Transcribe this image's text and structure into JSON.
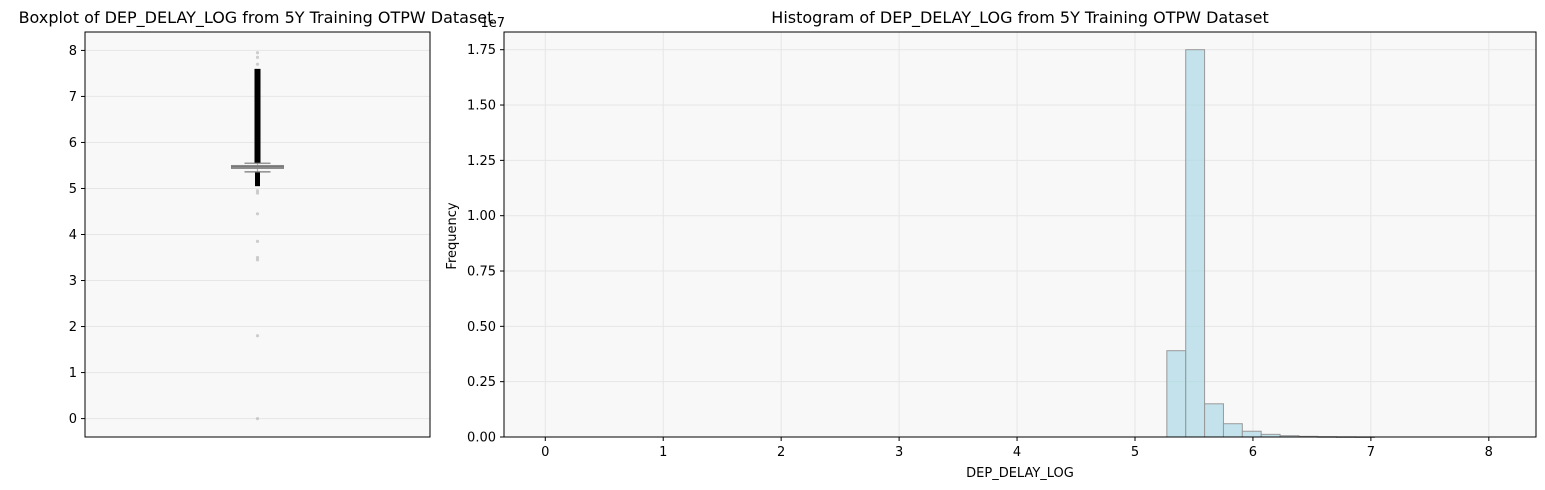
{
  "chart_data": [
    {
      "type": "boxplot",
      "title": "Boxplot of DEP_DELAY_LOG from 5Y Training OTPW Dataset",
      "xlabel": "",
      "ylabel": "",
      "ylim": [
        -0.4,
        8.4
      ],
      "yticks": [
        0,
        1,
        2,
        3,
        4,
        5,
        6,
        7,
        8
      ],
      "grid": true,
      "background": "#f8f8f8",
      "box": {
        "q1": 5.44,
        "median": 5.47,
        "q3": 5.5,
        "whisker_low": 5.36,
        "whisker_high": 5.55,
        "color": "#b0b0b0"
      },
      "outliers": {
        "dense_low": [
          5.05,
          5.36
        ],
        "dense_high": [
          5.55,
          7.6
        ],
        "sparse": [
          7.7,
          7.85,
          7.95,
          4.95,
          4.9,
          4.45,
          3.85,
          3.5,
          3.45,
          1.8,
          0.0
        ]
      }
    },
    {
      "type": "bar",
      "title": "Histogram of DEP_DELAY_LOG from 5Y Training OTPW Dataset",
      "xlabel": "DEP_DELAY_LOG",
      "ylabel": "Frequency",
      "y_scale_label": "1e7",
      "xlim": [
        -0.35,
        8.4
      ],
      "ylim": [
        0,
        1.83
      ],
      "xticks": [
        0,
        1,
        2,
        3,
        4,
        5,
        6,
        7,
        8
      ],
      "yticks": [
        "0.00",
        "0.25",
        "0.50",
        "0.75",
        "1.00",
        "1.25",
        "1.50",
        "1.75"
      ],
      "grid": true,
      "background": "#f8f8f8",
      "bar_color": "#add8e6",
      "bar_edge_color": "#999999",
      "bins": [
        {
          "x0": 5.27,
          "x1": 5.43,
          "value": 0.39
        },
        {
          "x0": 5.43,
          "x1": 5.59,
          "value": 1.75
        },
        {
          "x0": 5.59,
          "x1": 5.75,
          "value": 0.15
        },
        {
          "x0": 5.75,
          "x1": 5.91,
          "value": 0.06
        },
        {
          "x0": 5.91,
          "x1": 6.07,
          "value": 0.026
        },
        {
          "x0": 6.07,
          "x1": 6.23,
          "value": 0.012
        },
        {
          "x0": 6.23,
          "x1": 6.39,
          "value": 0.006
        },
        {
          "x0": 6.39,
          "x1": 6.55,
          "value": 0.003
        },
        {
          "x0": 6.55,
          "x1": 6.71,
          "value": 0.0015
        },
        {
          "x0": 6.71,
          "x1": 6.87,
          "value": 0.0008
        },
        {
          "x0": 6.87,
          "x1": 7.03,
          "value": 0.0004
        }
      ]
    }
  ]
}
